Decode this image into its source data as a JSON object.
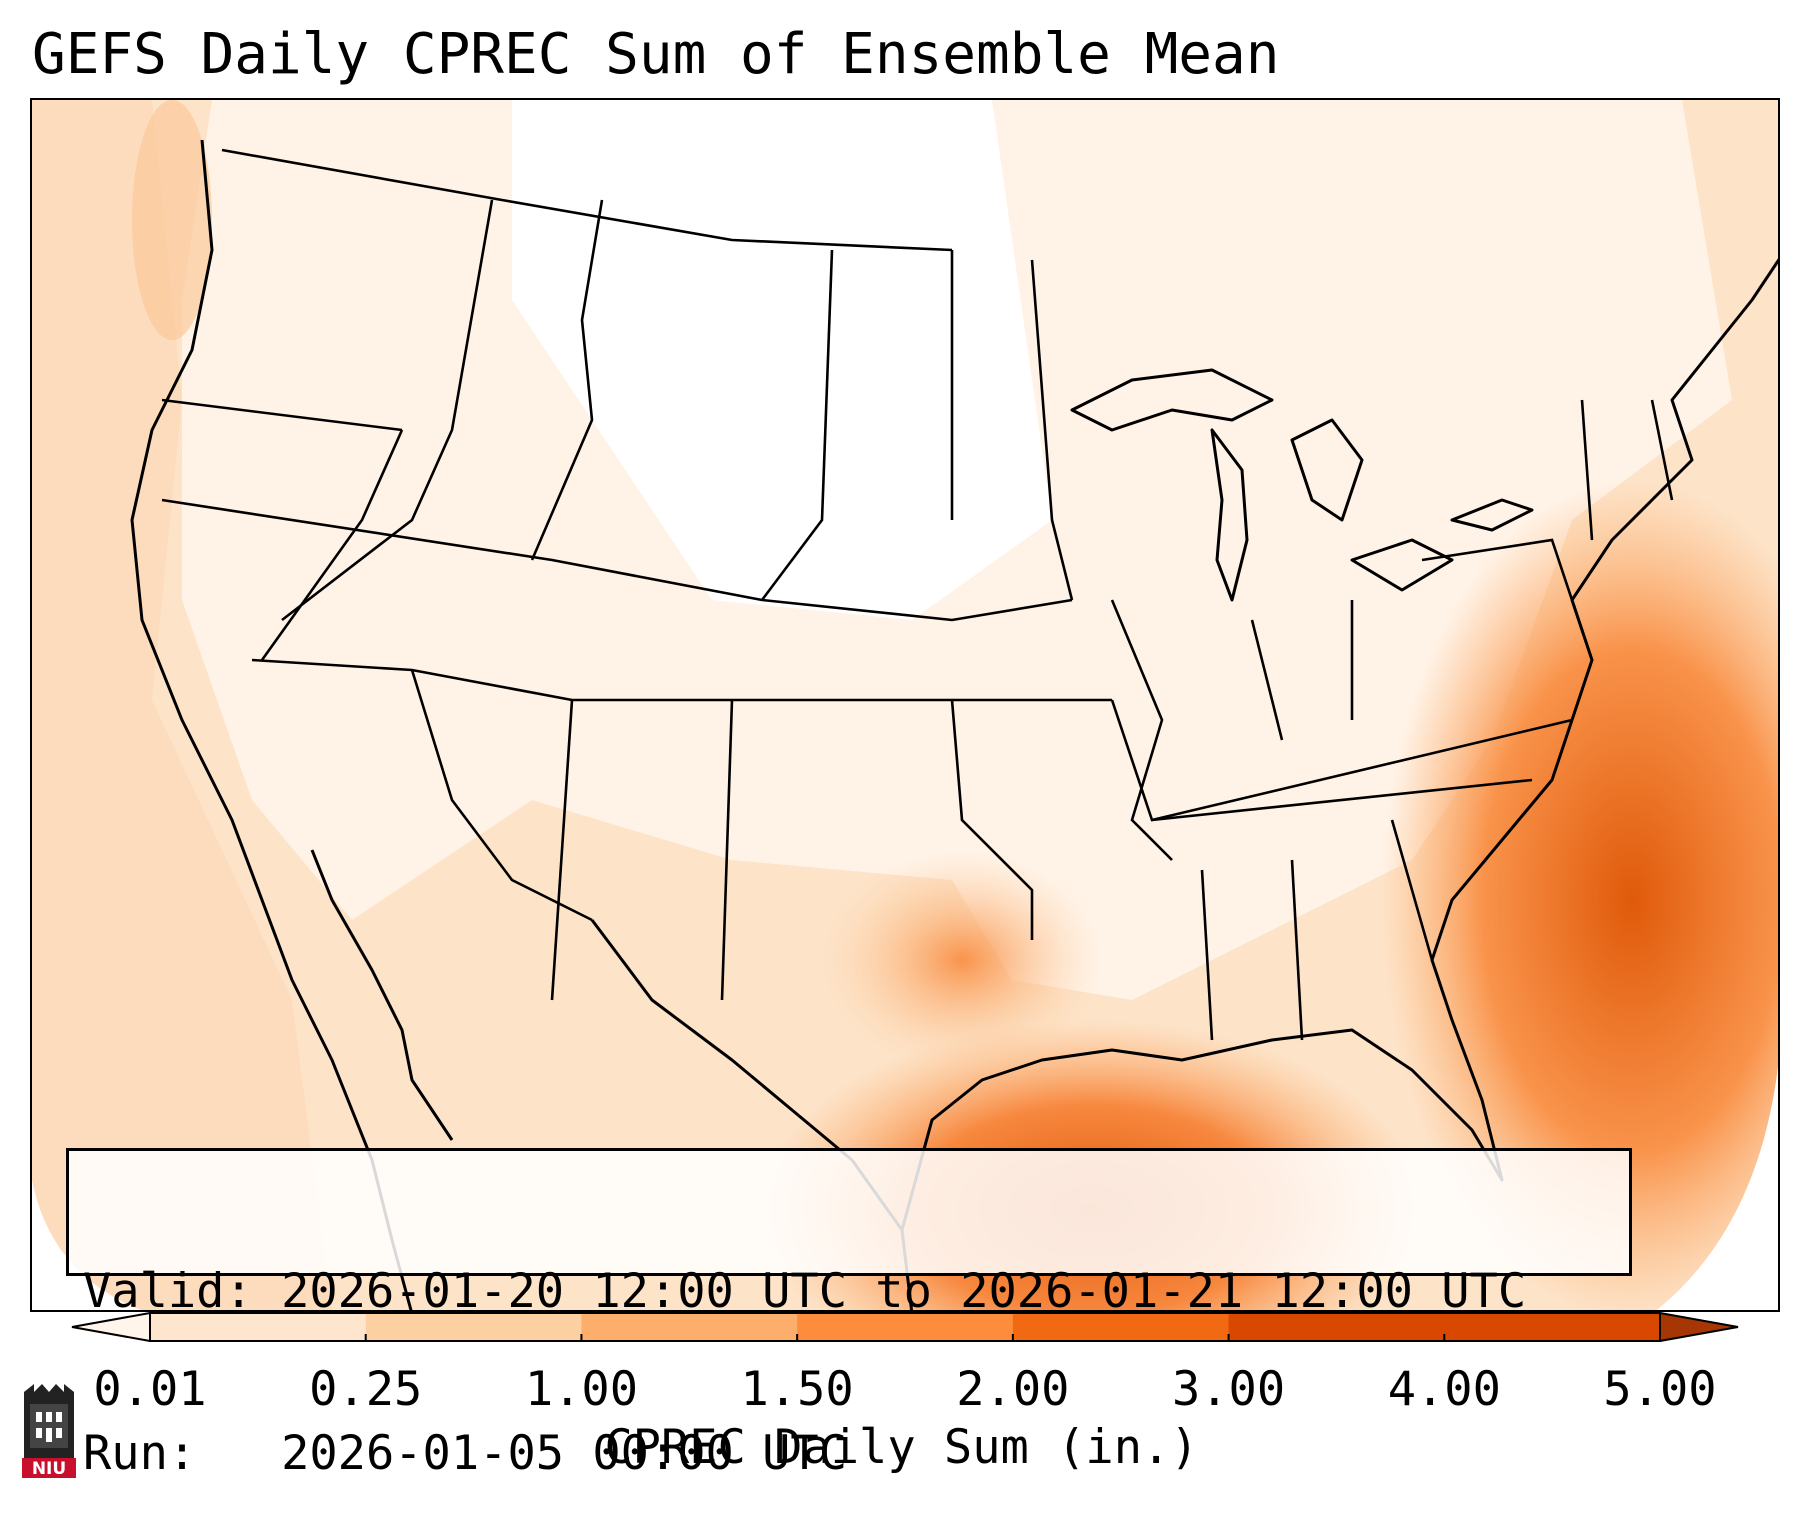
{
  "title": "GEFS Daily CPREC Sum of Ensemble Mean",
  "info": {
    "valid_label": "Valid:",
    "valid_value": "2026-01-20 12:00 UTC to 2026-01-21 12:00 UTC",
    "run_label": "Run:",
    "run_value": "2026-01-05 00:00 UTC"
  },
  "colorbar": {
    "label": "CPREC Daily Sum (in.)",
    "ticks": [
      "0.01",
      "0.25",
      "1.00",
      "1.50",
      "2.00",
      "3.00",
      "4.00",
      "5.00"
    ],
    "colors": [
      "#fff5eb",
      "#fee6ce",
      "#fdd0a2",
      "#fdae6b",
      "#fd8d3c",
      "#f16913",
      "#d94801",
      "#a63603"
    ],
    "extend": "both"
  },
  "logo": {
    "icon": "niu-logo-icon",
    "text": "NIU",
    "color": "#c8102e"
  }
}
